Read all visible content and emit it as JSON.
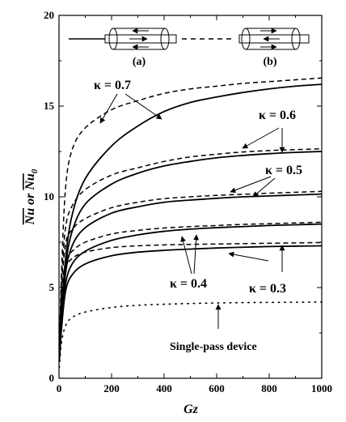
{
  "chart_data": {
    "type": "line",
    "title": "",
    "xlabel": "Gz",
    "ylabel": "Nu or Nu0",
    "ylabel_parts": {
      "a": "Nu",
      "or": " or ",
      "b": "Nu",
      "sub": "0"
    },
    "xlim": [
      0,
      1000
    ],
    "ylim": [
      0,
      20
    ],
    "xticks": [
      0,
      200,
      400,
      600,
      800,
      1000
    ],
    "yticks": [
      0,
      5,
      10,
      15,
      20
    ],
    "grid": false,
    "legend": "none",
    "x": [
      1,
      10,
      25,
      50,
      100,
      200,
      300,
      400,
      500,
      600,
      700,
      800,
      900,
      1000
    ],
    "series": [
      {
        "style": "solid",
        "values": [
          1.0,
          3.5,
          6.6,
          9.0,
          11.0,
          12.8,
          13.9,
          14.7,
          15.2,
          15.5,
          15.75,
          15.95,
          16.1,
          16.2
        ]
      },
      {
        "style": "dashed",
        "values": [
          1.5,
          6.0,
          10.5,
          12.6,
          13.8,
          14.8,
          15.3,
          15.7,
          15.95,
          16.1,
          16.25,
          16.35,
          16.45,
          16.55
        ]
      },
      {
        "style": "solid",
        "values": [
          1.0,
          3.4,
          6.2,
          8.1,
          9.6,
          10.7,
          11.3,
          11.7,
          11.95,
          12.15,
          12.28,
          12.38,
          12.45,
          12.5
        ]
      },
      {
        "style": "dashed",
        "values": [
          1.4,
          5.4,
          8.3,
          9.5,
          10.4,
          11.2,
          11.6,
          11.95,
          12.2,
          12.35,
          12.47,
          12.55,
          12.6,
          12.65
        ]
      },
      {
        "style": "solid",
        "values": [
          1.0,
          3.2,
          5.8,
          7.3,
          8.3,
          9.1,
          9.45,
          9.7,
          9.82,
          9.92,
          10.0,
          10.05,
          10.1,
          10.15
        ]
      },
      {
        "style": "dashed",
        "values": [
          1.3,
          5.0,
          7.4,
          8.2,
          8.8,
          9.4,
          9.7,
          9.9,
          10.0,
          10.08,
          10.14,
          10.2,
          10.25,
          10.3
        ]
      },
      {
        "style": "solid",
        "values": [
          0.9,
          3.0,
          5.2,
          6.3,
          7.0,
          7.6,
          7.9,
          8.1,
          8.22,
          8.3,
          8.36,
          8.42,
          8.46,
          8.5
        ]
      },
      {
        "style": "dashed",
        "values": [
          1.2,
          4.5,
          6.4,
          7.0,
          7.5,
          7.95,
          8.15,
          8.28,
          8.36,
          8.42,
          8.48,
          8.52,
          8.56,
          8.6
        ]
      },
      {
        "style": "solid",
        "values": [
          0.9,
          2.8,
          4.8,
          5.7,
          6.3,
          6.75,
          6.95,
          7.05,
          7.12,
          7.18,
          7.22,
          7.26,
          7.28,
          7.3
        ]
      },
      {
        "style": "dashed",
        "values": [
          1.1,
          4.2,
          6.0,
          6.6,
          6.95,
          7.2,
          7.3,
          7.35,
          7.38,
          7.4,
          7.42,
          7.44,
          7.46,
          7.48
        ]
      },
      {
        "style": "dotted",
        "values": [
          0.6,
          2.0,
          2.9,
          3.35,
          3.65,
          3.9,
          4.02,
          4.08,
          4.12,
          4.15,
          4.17,
          4.18,
          4.19,
          4.2
        ]
      }
    ],
    "annotations": [
      {
        "text": "κ = 0.7"
      },
      {
        "text": "κ = 0.6"
      },
      {
        "text": "κ = 0.5"
      },
      {
        "text": "κ = 0.4"
      },
      {
        "text": "κ = 0.3"
      },
      {
        "text": "Single-pass device"
      }
    ],
    "inset_labels": [
      "(a)",
      "(b)"
    ]
  }
}
